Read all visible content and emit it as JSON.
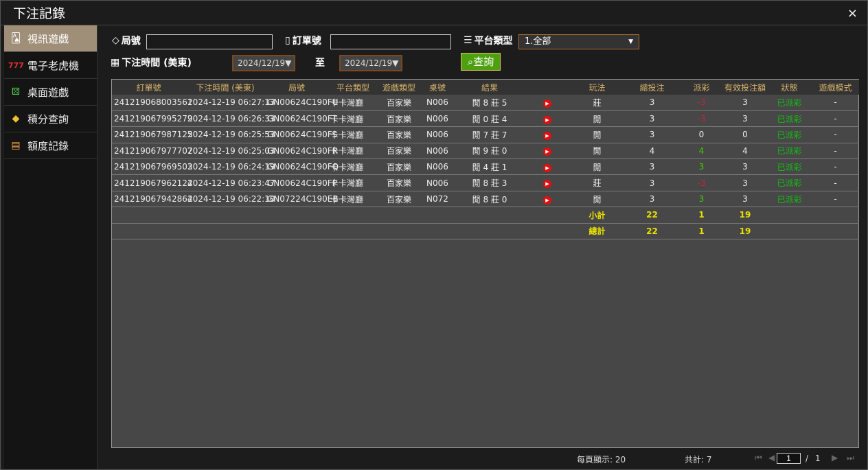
{
  "window": {
    "title": "下注記錄",
    "close": "×"
  },
  "sidebar": {
    "items": [
      {
        "label": "視訊遊戲",
        "icon": "cards-icon",
        "active": true
      },
      {
        "label": "電子老虎機",
        "icon": "slot-777-icon"
      },
      {
        "label": "桌面遊戲",
        "icon": "dice-icon"
      },
      {
        "label": "積分查詢",
        "icon": "diamond-icon"
      },
      {
        "label": "額度記錄",
        "icon": "document-icon"
      }
    ]
  },
  "filters": {
    "round_label": "局號",
    "round_value": "",
    "order_label": "訂單號",
    "order_value": "",
    "platform_label": "平台類型",
    "platform_value": "1.全部",
    "time_label": "下注時間 (美東)",
    "date_from": "2024/12/19▼",
    "to_label": "至",
    "date_to": "2024/12/19▼",
    "query_label": "查詢"
  },
  "table": {
    "headers": [
      "訂單號",
      "下注時間 (美東)",
      "局號",
      "平台類型",
      "遊戲類型",
      "桌號",
      "結果",
      "",
      "玩法",
      "總投注",
      "派彩",
      "有效投注額",
      "狀態",
      "遊戲模式"
    ],
    "rows": [
      [
        "241219068003561",
        "2024-12-19 06:27:13",
        "GN00624C190FU",
        "卡卡灣廳",
        "百家樂",
        "N006",
        "閒 8 莊 5",
        "",
        "莊",
        "3",
        "-3",
        "3",
        "已派彩",
        "-"
      ],
      [
        "241219067995279",
        "2024-12-19 06:26:33",
        "GN00624C190FT",
        "卡卡灣廳",
        "百家樂",
        "N006",
        "閒 0 莊 4",
        "",
        "閒",
        "3",
        "-3",
        "3",
        "已派彩",
        "-"
      ],
      [
        "241219067987125",
        "2024-12-19 06:25:53",
        "GN00624C190FS",
        "卡卡灣廳",
        "百家樂",
        "N006",
        "閒 7 莊 7",
        "",
        "閒",
        "3",
        "0",
        "0",
        "已派彩",
        "-"
      ],
      [
        "241219067977707",
        "2024-12-19 06:25:03",
        "GN00624C190FR",
        "卡卡灣廳",
        "百家樂",
        "N006",
        "閒 9 莊 0",
        "",
        "閒",
        "4",
        "4",
        "4",
        "已派彩",
        "-"
      ],
      [
        "241219067969503",
        "2024-12-19 06:24:19",
        "GN00624C190FQ",
        "卡卡灣廳",
        "百家樂",
        "N006",
        "閒 4 莊 1",
        "",
        "閒",
        "3",
        "3",
        "3",
        "已派彩",
        "-"
      ],
      [
        "241219067962124",
        "2024-12-19 06:23:47",
        "GN00624C190FP",
        "卡卡灣廳",
        "百家樂",
        "N006",
        "閒 8 莊 3",
        "",
        "莊",
        "3",
        "-3",
        "3",
        "已派彩",
        "-"
      ],
      [
        "241219067942864",
        "2024-12-19 06:22:10",
        "GN07224C190EB",
        "卡卡灣廳",
        "百家樂",
        "N072",
        "閒 8 莊 0",
        "",
        "閒",
        "3",
        "3",
        "3",
        "已派彩",
        "-"
      ]
    ],
    "subtotal": {
      "label": "小計",
      "total_bet": "22",
      "payout": "1",
      "valid_bet": "19"
    },
    "grandtotal": {
      "label": "總計",
      "total_bet": "22",
      "payout": "1",
      "valid_bet": "19"
    }
  },
  "colors": {
    "negative": "#d0203a",
    "positive": "#44cc00",
    "status": "#10c010",
    "header": "#d9b36a",
    "total": "#e8e000"
  },
  "footer": {
    "per_page": "每頁顯示: 20",
    "total": "共計: 7",
    "page": "1",
    "separator": "/",
    "pages": "1"
  }
}
